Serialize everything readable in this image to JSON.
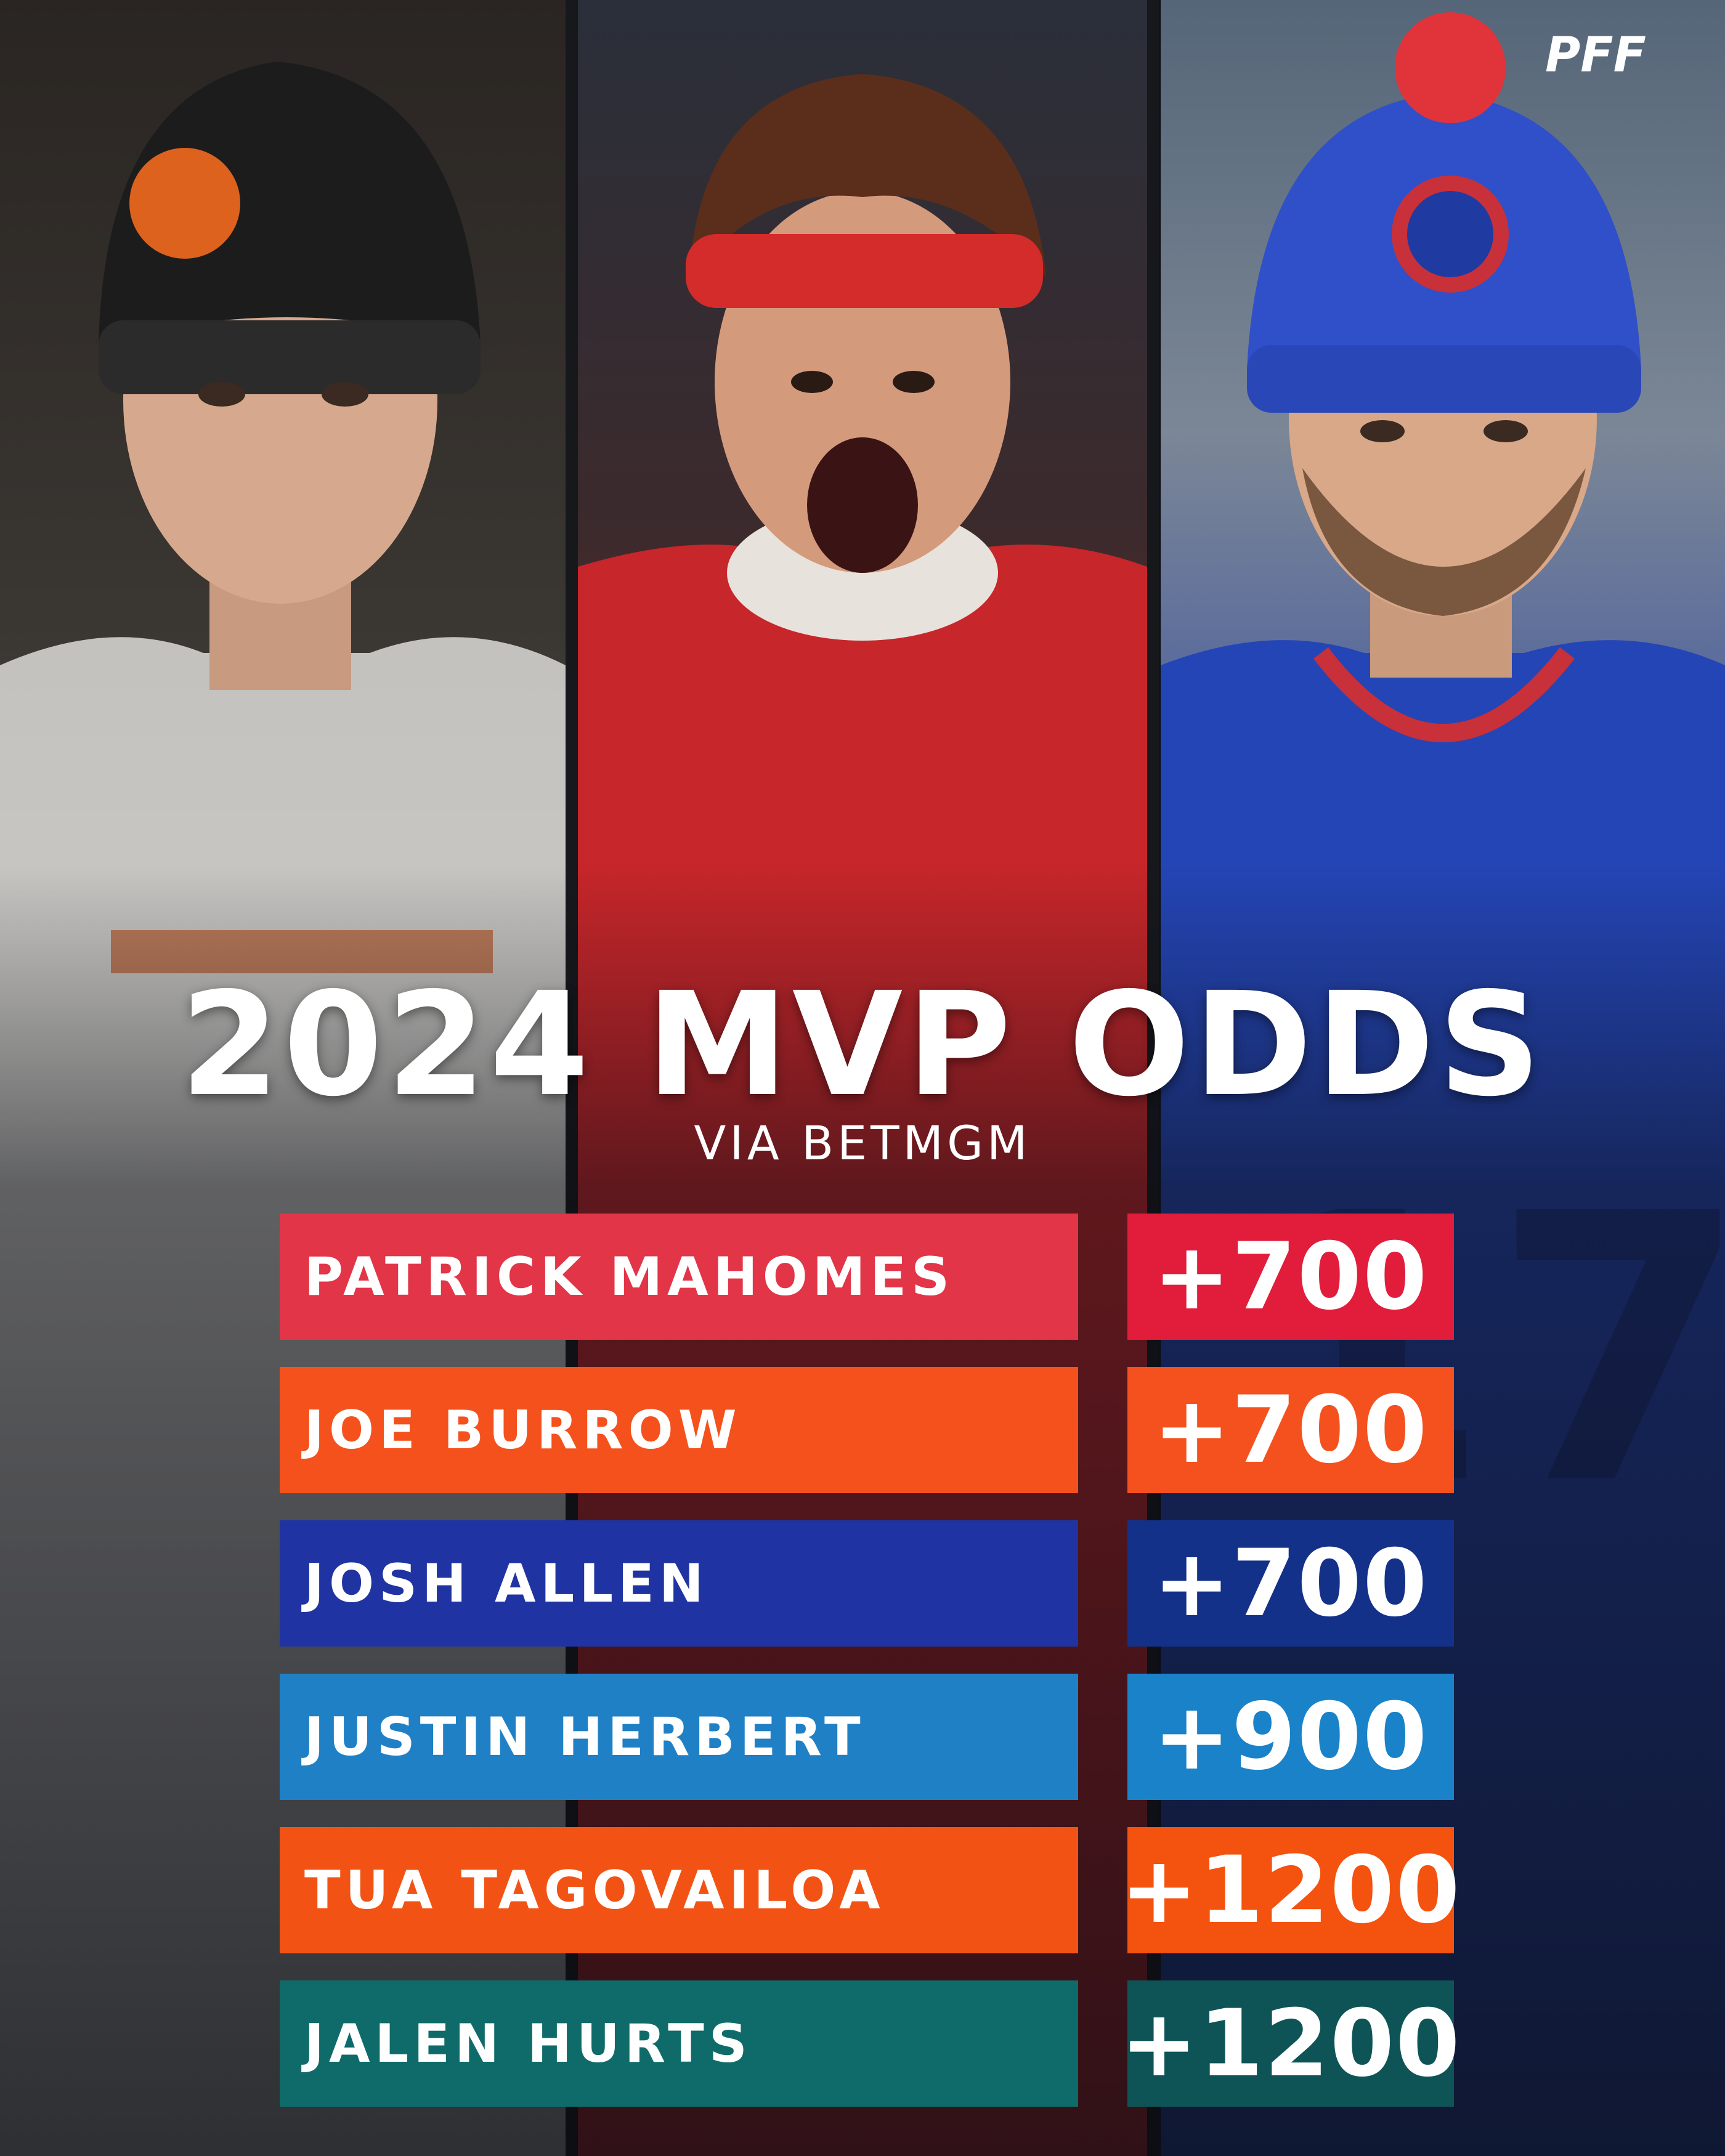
{
  "brand": {
    "logo_text": "PFF",
    "logo_icon": "pff-logo-icon"
  },
  "header": {
    "title": "2024 MVP ODDS",
    "subtitle": "VIA BETMGM"
  },
  "players": [
    {
      "name": "PATRICK MAHOMES",
      "odds": "+700",
      "name_color": "#e23548",
      "odds_color": "#e11d3b"
    },
    {
      "name": "JOE BURROW",
      "odds": "+700",
      "name_color": "#f5511d",
      "odds_color": "#f4511e"
    },
    {
      "name": "JOSH ALLEN",
      "odds": "+700",
      "name_color": "#1f34a2",
      "odds_color": "#14318a"
    },
    {
      "name": "JUSTIN HERBERT",
      "odds": "+900",
      "name_color": "#1f80c5",
      "odds_color": "#1a82c9"
    },
    {
      "name": "TUA TAGOVAILOA",
      "odds": "+1200",
      "name_color": "#f25314",
      "odds_color": "#f4520f"
    },
    {
      "name": "JALEN HURTS",
      "odds": "+1200",
      "name_color": "#0f6b6a",
      "odds_color": "#0e5456"
    }
  ],
  "photos": [
    {
      "icon": "bengals-player-photo"
    },
    {
      "icon": "chiefs-player-photo"
    },
    {
      "icon": "bills-player-photo"
    }
  ]
}
